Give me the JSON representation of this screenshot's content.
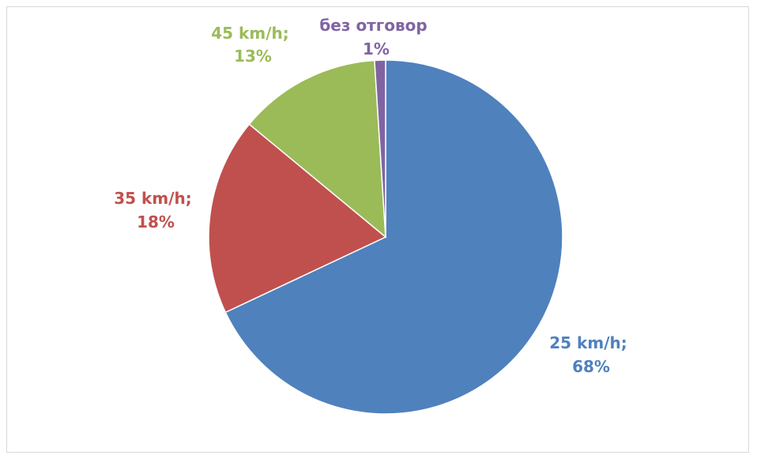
{
  "chart_data": {
    "type": "pie",
    "title": "",
    "categories": [
      "25 km/h",
      "35 km/h",
      "45 km/h",
      "без отговор"
    ],
    "values": [
      68,
      18,
      13,
      1
    ],
    "unit": "%",
    "colors": [
      "#4f81bd",
      "#c0504d",
      "#9bbb59",
      "#8064a2"
    ],
    "labels": [
      {
        "line1": "25 km/h;",
        "line2": "68%"
      },
      {
        "line1": "35 km/h;",
        "line2": "18%"
      },
      {
        "line1": "45 km/h;",
        "line2": "13%"
      },
      {
        "line1": "без отговор",
        "line2": "1%"
      }
    ],
    "legend": "none",
    "start_angle": "12 o'clock",
    "direction": "clockwise"
  }
}
